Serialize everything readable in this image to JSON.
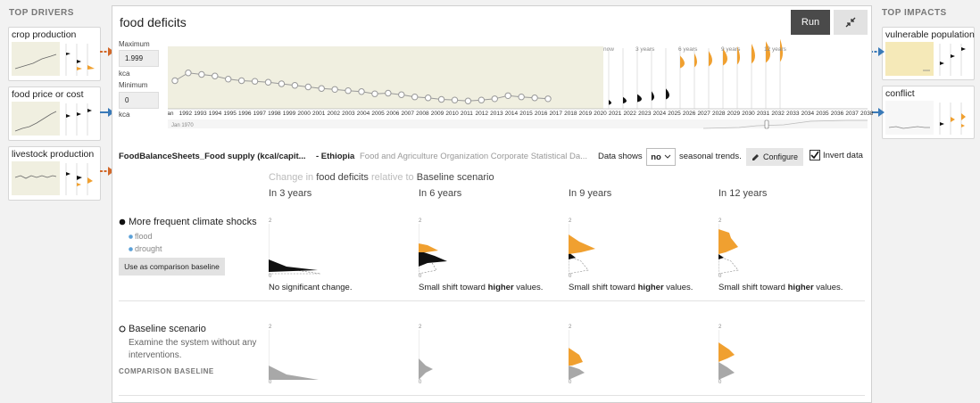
{
  "sidebar_left": {
    "title": "TOP DRIVERS",
    "items": [
      {
        "label": "crop production"
      },
      {
        "label": "food price or cost"
      },
      {
        "label": "livestock production"
      }
    ]
  },
  "sidebar_right": {
    "title": "TOP IMPACTS",
    "items": [
      {
        "label": "vulnerable population"
      },
      {
        "label": "conflict"
      }
    ]
  },
  "header": {
    "title": "food deficits",
    "run_label": "Run",
    "collapse_icon": "collapse-arrows-icon"
  },
  "timeseries": {
    "max_label": "Maximum",
    "max_value": "1.999",
    "max_unit": "kca",
    "min_label": "Minimum",
    "min_value": "0",
    "min_unit": "kca",
    "brush_start": "Jan 1970",
    "now_label": "now",
    "horizon_labels": [
      "3 years",
      "6 years",
      "9 years",
      "12 years"
    ],
    "x_labels": [
      "Jan",
      "1992",
      "1993",
      "1994",
      "1995",
      "1996",
      "1997",
      "1998",
      "1999",
      "2000",
      "2001",
      "2002",
      "2003",
      "2004",
      "2005",
      "2006",
      "2007",
      "2008",
      "2009",
      "2010",
      "2011",
      "2012",
      "2013",
      "2014",
      "2015",
      "2016",
      "2017",
      "2018",
      "2019",
      "2020",
      "2021",
      "2022",
      "2023",
      "2024",
      "2025",
      "2026",
      "2027",
      "2028",
      "2029",
      "2030",
      "2031",
      "2032",
      "2033",
      "2034",
      "2035",
      "2036",
      "2037",
      "2038"
    ],
    "values": [
      0.9,
      1.15,
      1.1,
      1.05,
      0.95,
      0.9,
      0.88,
      0.85,
      0.8,
      0.75,
      0.7,
      0.65,
      0.62,
      0.58,
      0.55,
      0.48,
      0.5,
      0.45,
      0.38,
      0.35,
      0.3,
      0.28,
      0.25,
      0.28,
      0.32,
      0.42,
      0.38,
      0.35,
      0.32
    ]
  },
  "dataset": {
    "name": "FoodBalanceSheets_Food supply (kcal/capit...",
    "region": "- Ethiopia",
    "source": "Food and Agriculture Organization Corporate Statistical Da...",
    "shows_label": "Data shows",
    "seasonal_value": "no",
    "seasonal_suffix": "seasonal trends.",
    "configure_label": "Configure",
    "invert_label": "Invert data"
  },
  "comparison": {
    "prefix": "Change in",
    "concept": "food deficits",
    "relative": "relative to",
    "baseline": "Baseline scenario",
    "columns": [
      "In 3 years",
      "In 6 years",
      "In 9 years",
      "In 12 years"
    ]
  },
  "scenarios": [
    {
      "name": "More frequent climate shocks",
      "selected": true,
      "interventions": [
        "flood",
        "drought"
      ],
      "action_label": "Use as comparison baseline",
      "tick_top": "2",
      "tick_bottom": "0",
      "captions": [
        {
          "pre": "No significant change.",
          "bold": "",
          "post": ""
        },
        {
          "pre": "Small shift toward ",
          "bold": "higher",
          "post": " values."
        },
        {
          "pre": "Small shift toward ",
          "bold": "higher",
          "post": " values."
        },
        {
          "pre": "Small shift toward ",
          "bold": "higher",
          "post": " values."
        }
      ]
    },
    {
      "name": "Baseline scenario",
      "selected": false,
      "description": "Examine the system without any interventions.",
      "badge": "COMPARISON BASELINE",
      "tick_top": "2",
      "tick_bottom": "0"
    }
  ],
  "colors": {
    "accent_orange": "#f0a030",
    "arrow_orange": "#d2692a",
    "arrow_blue": "#3a7ab8",
    "chart_bg": "#f0efe0",
    "baseline_gray": "#a8a8a8"
  }
}
